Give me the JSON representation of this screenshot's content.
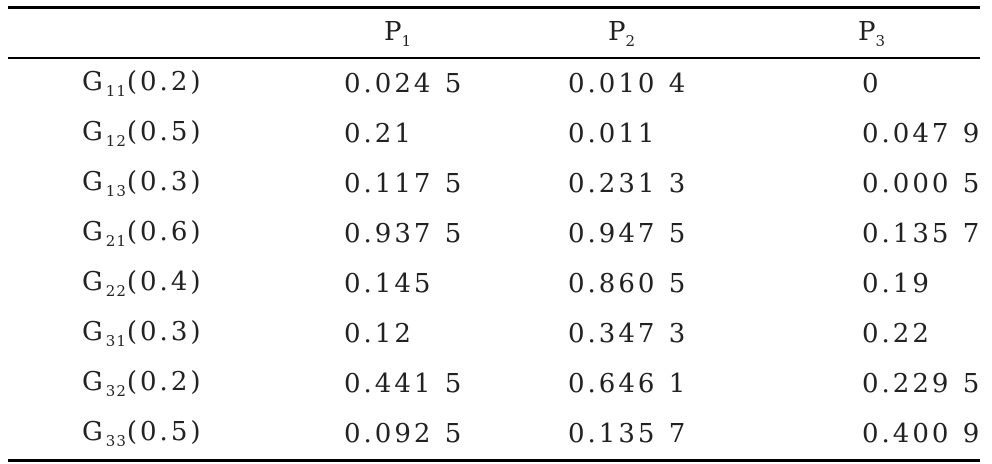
{
  "table": {
    "headers": [
      {
        "base": "",
        "sub": ""
      },
      {
        "base": "P",
        "sub": "1"
      },
      {
        "base": "P",
        "sub": "2"
      },
      {
        "base": "P",
        "sub": "3"
      }
    ],
    "rows": [
      {
        "g": "G",
        "gsub": "11",
        "param": "(0.2)",
        "p1": "0.024 5",
        "p2": "0.010 4",
        "p3": "0"
      },
      {
        "g": "G",
        "gsub": "12",
        "param": "(0.5)",
        "p1": "0.21",
        "p2": "0.011",
        "p3": "0.047 9"
      },
      {
        "g": "G",
        "gsub": "13",
        "param": "(0.3)",
        "p1": "0.117 5",
        "p2": "0.231 3",
        "p3": "0.000 5"
      },
      {
        "g": "G",
        "gsub": "21",
        "param": "(0.6)",
        "p1": "0.937 5",
        "p2": "0.947 5",
        "p3": "0.135 7"
      },
      {
        "g": "G",
        "gsub": "22",
        "param": "(0.4)",
        "p1": "0.145",
        "p2": "0.860 5",
        "p3": "0.19"
      },
      {
        "g": "G",
        "gsub": "31",
        "param": "(0.3)",
        "p1": "0.12",
        "p2": "0.347 3",
        "p3": "0.22"
      },
      {
        "g": "G",
        "gsub": "32",
        "param": "(0.2)",
        "p1": "0.441 5",
        "p2": "0.646 1",
        "p3": "0.229 5"
      },
      {
        "g": "G",
        "gsub": "33",
        "param": "(0.5)",
        "p1": "0.092 5",
        "p2": "0.135 7",
        "p3": "0.400 9"
      }
    ]
  }
}
